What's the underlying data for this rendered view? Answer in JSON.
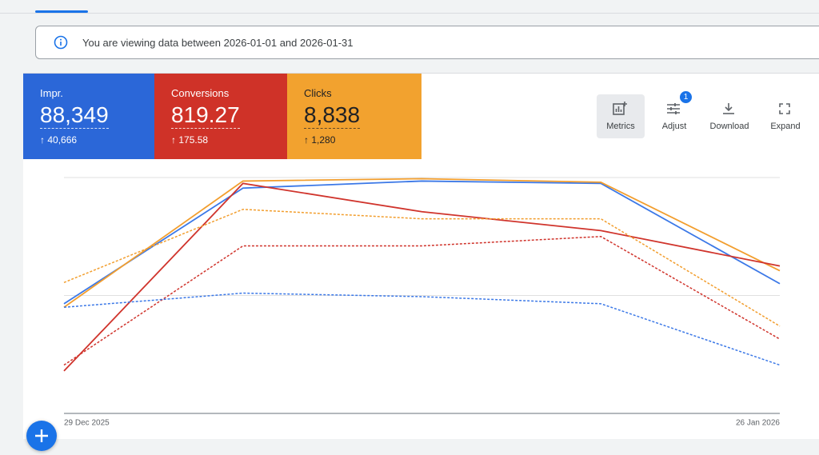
{
  "banner": {
    "text": "You are viewing data between 2026-01-01 and 2026-01-31"
  },
  "scorecards": [
    {
      "label": "Impr.",
      "value": "88,349",
      "change": "40,666",
      "color": "#2b67d8"
    },
    {
      "label": "Conversions",
      "value": "819.27",
      "change": "175.58",
      "color": "#cf3228"
    },
    {
      "label": "Clicks",
      "value": "8,838",
      "change": "1,280",
      "color": "#f2a22f"
    }
  ],
  "toolbar": {
    "buttons": [
      {
        "label": "Metrics"
      },
      {
        "label": "Adjust",
        "badge": "1"
      },
      {
        "label": "Download"
      },
      {
        "label": "Expand"
      }
    ]
  },
  "chart_data": {
    "type": "line",
    "categories": [
      "29 Dec 2025",
      null,
      null,
      null,
      "26 Jan 2026"
    ],
    "ylim": [
      0,
      2
    ],
    "yticks": [
      0,
      1,
      2
    ],
    "grid": true,
    "series": [
      {
        "color": "#3b78e7",
        "dashed": false,
        "values": [
          0.93,
          1.91,
          1.97,
          1.95,
          1.1
        ]
      },
      {
        "color": "#f29e2e",
        "dashed": false,
        "values": [
          0.9,
          1.97,
          1.99,
          1.96,
          1.21
        ]
      },
      {
        "color": "#d0342c",
        "dashed": false,
        "values": [
          0.36,
          1.95,
          1.71,
          1.55,
          1.25
        ]
      },
      {
        "color": "#f29e2e",
        "dashed": true,
        "values": [
          1.11,
          1.73,
          1.65,
          1.65,
          0.74
        ]
      },
      {
        "color": "#d0342c",
        "dashed": true,
        "values": [
          0.41,
          1.42,
          1.42,
          1.5,
          0.63
        ]
      },
      {
        "color": "#3b78e7",
        "dashed": true,
        "values": [
          0.9,
          1.02,
          0.99,
          0.93,
          0.41
        ]
      }
    ]
  }
}
